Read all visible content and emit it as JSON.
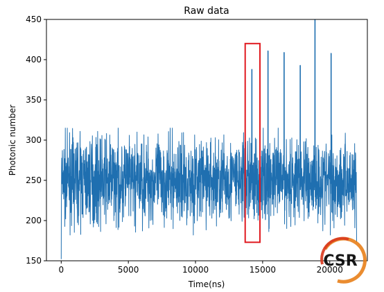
{
  "chart_data": {
    "type": "line",
    "title": "Raw data",
    "xlabel": "Time(ns)",
    "ylabel": "Photonic number",
    "xlim": [
      -1100,
      22800
    ],
    "ylim": [
      150,
      450
    ],
    "xticks": [
      0,
      5000,
      10000,
      15000,
      20000
    ],
    "yticks": [
      150,
      200,
      250,
      300,
      350,
      400,
      450
    ],
    "grid": false,
    "line_color": "#1f6fb0",
    "series": [
      {
        "x_range": [
          0,
          22000
        ],
        "baseline_mean": 250,
        "baseline_band": [
          200,
          305
        ],
        "start_value": 152,
        "end_value": 173,
        "spikes": [
          {
            "x": 14200,
            "y": 388
          },
          {
            "x": 15400,
            "y": 411
          },
          {
            "x": 16600,
            "y": 409
          },
          {
            "x": 17800,
            "y": 393
          },
          {
            "x": 18900,
            "y": 450
          },
          {
            "x": 20100,
            "y": 408
          }
        ]
      }
    ],
    "highlight_box": {
      "x_range": [
        13700,
        14800
      ],
      "y_range": [
        173,
        420
      ],
      "color": "#e0191f"
    }
  },
  "watermark": {
    "text": "CSR",
    "colors": [
      "#d9381e",
      "#e8801a"
    ]
  }
}
